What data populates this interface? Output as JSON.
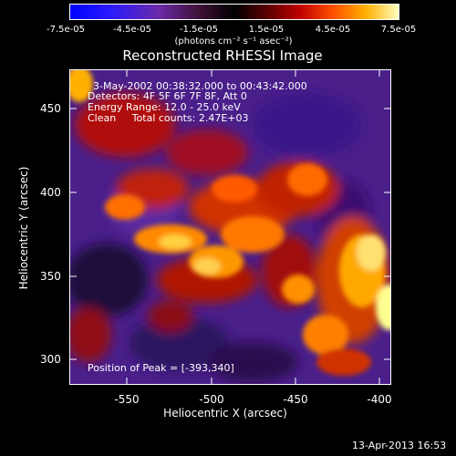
{
  "colorbar": {
    "tick_labels": [
      "-7.5e-05",
      "-4.5e-05",
      "-1.5e-05",
      "1.5e-05",
      "4.5e-05",
      "7.5e-05"
    ],
    "units": "(photons cm⁻² s⁻¹ asec⁻²)"
  },
  "plot": {
    "title": "Reconstructed RHESSI Image",
    "time_range": "3-May-2002 00:38:32.000 to 00:43:42.000",
    "detectors": "Detectors: 4F 5F 6F 7F 8F, Att 0",
    "energy_range": "Energy Range: 12.0 - 25.0 keV",
    "clean_line": "Clean     Total counts: 2.47E+03",
    "peak": "Position of Peak = [-393,340]",
    "x_axis_label": "Heliocentric X (arcsec)",
    "y_axis_label": "Heliocentric Y (arcsec)",
    "x_ticks": [
      "-550",
      "-500",
      "-450",
      "-400"
    ],
    "y_ticks": [
      "450",
      "400",
      "350",
      "300"
    ],
    "x_range": [
      -570,
      -380
    ],
    "y_range": [
      280,
      475
    ]
  },
  "footer": {
    "date": "13-Apr-2013 16:53"
  }
}
